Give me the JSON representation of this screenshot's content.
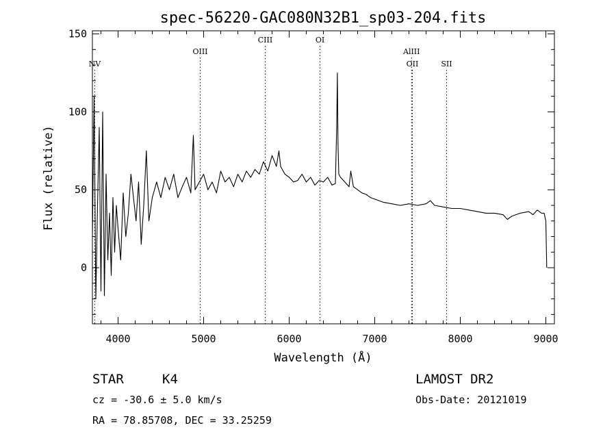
{
  "chart_data": {
    "type": "line",
    "title": "spec-56220-GAC080N32B1_sp03-204.fits",
    "xlabel": "Wavelength (Å)",
    "ylabel": "Flux (relative)",
    "xlim": [
      3700,
      9100
    ],
    "ylim": [
      -36,
      152
    ],
    "x_ticks": [
      4000,
      5000,
      6000,
      7000,
      8000,
      9000
    ],
    "y_ticks": [
      0,
      50,
      100,
      150
    ],
    "grid": false,
    "line_marks": [
      {
        "label": "NV",
        "wavelength": 3727,
        "tier": 3
      },
      {
        "label": "OIII",
        "wavelength": 4960,
        "tier": 2
      },
      {
        "label": "CIII",
        "wavelength": 5720,
        "tier": 1
      },
      {
        "label": "OI",
        "wavelength": 6360,
        "tier": 1
      },
      {
        "label": "AlIII",
        "wavelength": 7430,
        "tier": 2
      },
      {
        "label": "OII",
        "wavelength": 7440,
        "tier": 3
      },
      {
        "label": "SII",
        "wavelength": 7840,
        "tier": 3
      }
    ],
    "series": [
      {
        "x": [
          3700,
          3720,
          3740,
          3760,
          3780,
          3800,
          3820,
          3840,
          3860,
          3880,
          3900,
          3920,
          3940,
          3960,
          3980,
          4000,
          4030,
          4060,
          4090,
          4120,
          4150,
          4180,
          4210,
          4240,
          4270,
          4300,
          4330,
          4360,
          4400,
          4450,
          4500,
          4550,
          4600,
          4650,
          4700,
          4750,
          4800,
          4850,
          4880,
          4900,
          4950,
          5000,
          5050,
          5100,
          5150,
          5200,
          5250,
          5300,
          5350,
          5400,
          5450,
          5500,
          5550,
          5600,
          5650,
          5700,
          5750,
          5800,
          5850,
          5880,
          5900,
          5950,
          6000,
          6050,
          6100,
          6150,
          6200,
          6250,
          6300,
          6350,
          6400,
          6450,
          6500,
          6540,
          6555,
          6563,
          6570,
          6580,
          6600,
          6650,
          6700,
          6720,
          6750,
          6800,
          6850,
          6900,
          6950,
          7000,
          7100,
          7200,
          7300,
          7400,
          7500,
          7600,
          7650,
          7700,
          7800,
          7900,
          8000,
          8100,
          8200,
          8300,
          8400,
          8500,
          8550,
          8600,
          8700,
          8800,
          8850,
          8900,
          8950,
          8980,
          9000,
          9010
        ],
        "y": [
          20,
          110,
          -20,
          40,
          90,
          -15,
          100,
          -18,
          60,
          5,
          35,
          -5,
          45,
          10,
          40,
          25,
          5,
          48,
          20,
          35,
          60,
          45,
          30,
          55,
          15,
          40,
          75,
          30,
          45,
          55,
          45,
          58,
          50,
          60,
          45,
          52,
          58,
          48,
          85,
          50,
          55,
          60,
          50,
          55,
          48,
          62,
          55,
          58,
          52,
          60,
          55,
          62,
          58,
          63,
          60,
          68,
          62,
          72,
          65,
          75,
          65,
          60,
          58,
          55,
          56,
          60,
          55,
          58,
          53,
          56,
          55,
          58,
          53,
          54,
          90,
          125,
          80,
          60,
          58,
          55,
          52,
          62,
          52,
          50,
          48,
          47,
          45,
          44,
          42,
          41,
          40,
          41,
          40,
          41,
          43,
          40,
          39,
          38,
          38,
          37,
          36,
          35,
          35,
          34,
          31,
          33,
          35,
          36,
          34,
          37,
          35,
          35,
          30,
          0
        ]
      }
    ],
    "extra_text": {
      "class_label": "STAR",
      "subclass_label": "K4",
      "survey_label": "LAMOST DR2",
      "redshift_text": "cz = -30.6 ± 5.0 km/s",
      "obs_date_text": "Obs-Date: 20121019",
      "coords_text": "RA =  78.85708, DEC =  33.25259"
    }
  }
}
